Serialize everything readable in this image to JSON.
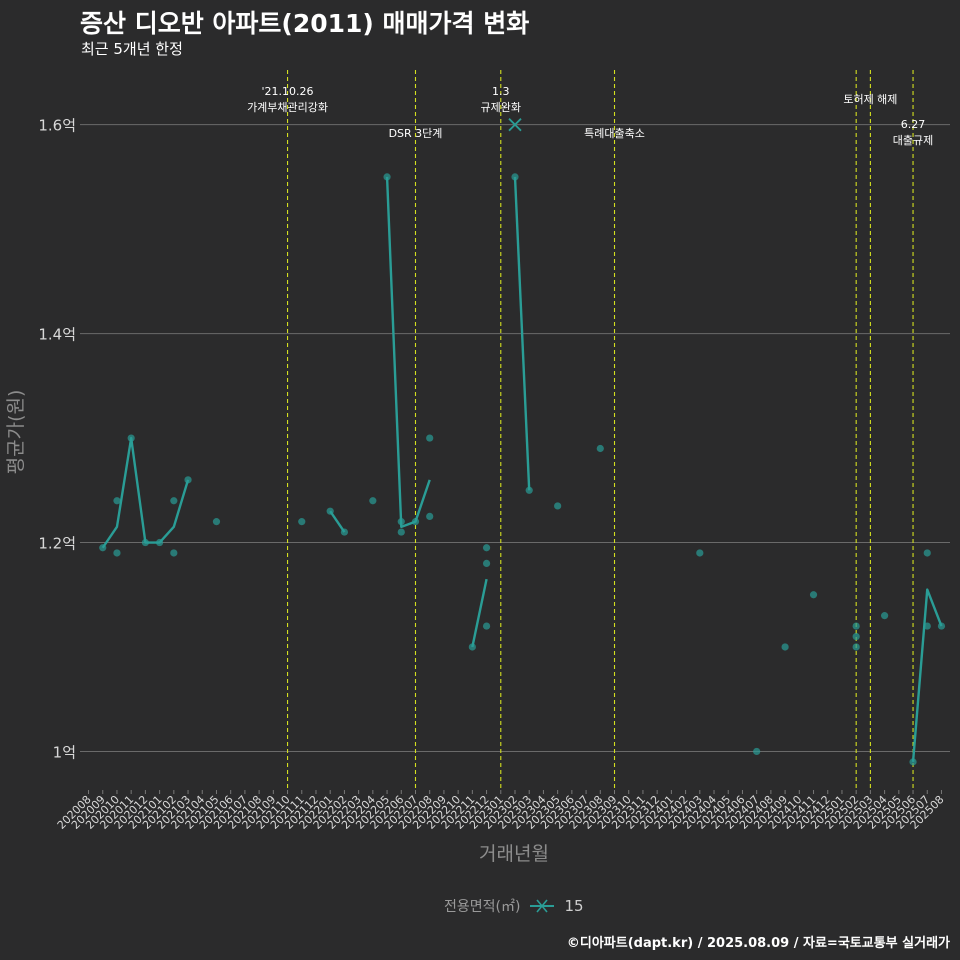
{
  "chart_data": {
    "type": "line",
    "title": "증산 디오반 아파트(2011) 매매가격 변화",
    "subtitle": "최근 5개년 한정",
    "xlabel": "거래년월",
    "ylabel": "평균가(원)",
    "y_unit": "억",
    "ylim": [
      0.965,
      1.66
    ],
    "y_ticks": [
      {
        "value": 1.0,
        "label": "1억"
      },
      {
        "value": 1.2,
        "label": "1.2억"
      },
      {
        "value": 1.4,
        "label": "1.4억"
      },
      {
        "value": 1.6,
        "label": "1.6억"
      }
    ],
    "categories": [
      "202008",
      "202009",
      "202010",
      "202011",
      "202012",
      "202101",
      "202102",
      "202103",
      "202104",
      "202105",
      "202106",
      "202107",
      "202108",
      "202109",
      "202110",
      "202111",
      "202112",
      "202201",
      "202202",
      "202203",
      "202204",
      "202205",
      "202206",
      "202207",
      "202208",
      "202209",
      "202210",
      "202211",
      "202212",
      "202301",
      "202302",
      "202303",
      "202304",
      "202305",
      "202306",
      "202307",
      "202308",
      "202309",
      "202310",
      "202311",
      "202312",
      "202401",
      "202402",
      "202403",
      "202404",
      "202405",
      "202406",
      "202407",
      "202408",
      "202409",
      "202410",
      "202411",
      "202412",
      "202501",
      "202502",
      "202503",
      "202504",
      "202505",
      "202506",
      "202507",
      "202508"
    ],
    "series": [
      {
        "name": "15",
        "color": "#2a9d96",
        "line": [
          {
            "x": "202009",
            "y": 1.195
          },
          {
            "x": "202010",
            "y": 1.215
          },
          {
            "x": "202011",
            "y": 1.3
          },
          {
            "x": "202012",
            "y": 1.2
          },
          {
            "x": "202101",
            "y": 1.2
          },
          {
            "x": "202102",
            "y": 1.215
          },
          {
            "x": "202103",
            "y": 1.26
          },
          null,
          {
            "x": "202201",
            "y": 1.23
          },
          {
            "x": "202202",
            "y": 1.21
          },
          null,
          {
            "x": "202205",
            "y": 1.55
          },
          {
            "x": "202206",
            "y": 1.215
          },
          {
            "x": "202207",
            "y": 1.22
          },
          {
            "x": "202208",
            "y": 1.26
          },
          null,
          {
            "x": "202211",
            "y": 1.1
          },
          {
            "x": "202212",
            "y": 1.165
          },
          null,
          {
            "x": "202302",
            "y": 1.55
          },
          {
            "x": "202303",
            "y": 1.25
          },
          null,
          {
            "x": "202506",
            "y": 0.99
          },
          {
            "x": "202507",
            "y": 1.155
          },
          {
            "x": "202508",
            "y": 1.12
          }
        ],
        "points": [
          {
            "x": "202009",
            "y": 1.195
          },
          {
            "x": "202010",
            "y": 1.24
          },
          {
            "x": "202010",
            "y": 1.19
          },
          {
            "x": "202011",
            "y": 1.3
          },
          {
            "x": "202012",
            "y": 1.2
          },
          {
            "x": "202101",
            "y": 1.2
          },
          {
            "x": "202102",
            "y": 1.24
          },
          {
            "x": "202102",
            "y": 1.19
          },
          {
            "x": "202103",
            "y": 1.26
          },
          {
            "x": "202105",
            "y": 1.22
          },
          {
            "x": "202111",
            "y": 1.22
          },
          {
            "x": "202201",
            "y": 1.23
          },
          {
            "x": "202202",
            "y": 1.21
          },
          {
            "x": "202204",
            "y": 1.24
          },
          {
            "x": "202205",
            "y": 1.55
          },
          {
            "x": "202206",
            "y": 1.22
          },
          {
            "x": "202206",
            "y": 1.21
          },
          {
            "x": "202207",
            "y": 1.22
          },
          {
            "x": "202208",
            "y": 1.3
          },
          {
            "x": "202208",
            "y": 1.225
          },
          {
            "x": "202211",
            "y": 1.1
          },
          {
            "x": "202212",
            "y": 1.195
          },
          {
            "x": "202212",
            "y": 1.18
          },
          {
            "x": "202212",
            "y": 1.12
          },
          {
            "x": "202302",
            "y": 1.55
          },
          {
            "x": "202303",
            "y": 1.25
          },
          {
            "x": "202305",
            "y": 1.235
          },
          {
            "x": "202308",
            "y": 1.29
          },
          {
            "x": "202403",
            "y": 1.19
          },
          {
            "x": "202407",
            "y": 1.0
          },
          {
            "x": "202409",
            "y": 1.1
          },
          {
            "x": "202411",
            "y": 1.15
          },
          {
            "x": "202502",
            "y": 1.12
          },
          {
            "x": "202502",
            "y": 1.11
          },
          {
            "x": "202502",
            "y": 1.1
          },
          {
            "x": "202504",
            "y": 1.13
          },
          {
            "x": "202506",
            "y": 0.99
          },
          {
            "x": "202507",
            "y": 1.19
          },
          {
            "x": "202507",
            "y": 1.12
          },
          {
            "x": "202508",
            "y": 1.12
          }
        ],
        "marker": {
          "x": "202302",
          "y": 1.6,
          "shape": "x"
        }
      }
    ],
    "events": [
      {
        "x": "202110",
        "lines": [
          "'21.10.26",
          "가계부채관리강화"
        ],
        "row": "high"
      },
      {
        "x": "202207",
        "lines": [
          "DSR 3단계"
        ],
        "row": "low"
      },
      {
        "x": "202301",
        "lines": [
          "1.3",
          "규제완화"
        ],
        "row": "high"
      },
      {
        "x": "202309",
        "lines": [
          "특례대출축소"
        ],
        "row": "low"
      },
      {
        "x": "202502",
        "lines": [],
        "row": "none"
      },
      {
        "x": "202503",
        "lines": [
          "토허제 해제"
        ],
        "row": "mid"
      },
      {
        "x": "202506",
        "lines": [
          "6.27",
          "대출규제"
        ],
        "row": "lowest"
      }
    ],
    "event_line_color": "#d4e020",
    "grid": true,
    "legend": {
      "title": "전용면적(㎡)",
      "position": "bottom"
    },
    "caption": "©디아파트(dapt.kr) / 2025.08.09 / 자료=국토교통부 실거래가"
  }
}
